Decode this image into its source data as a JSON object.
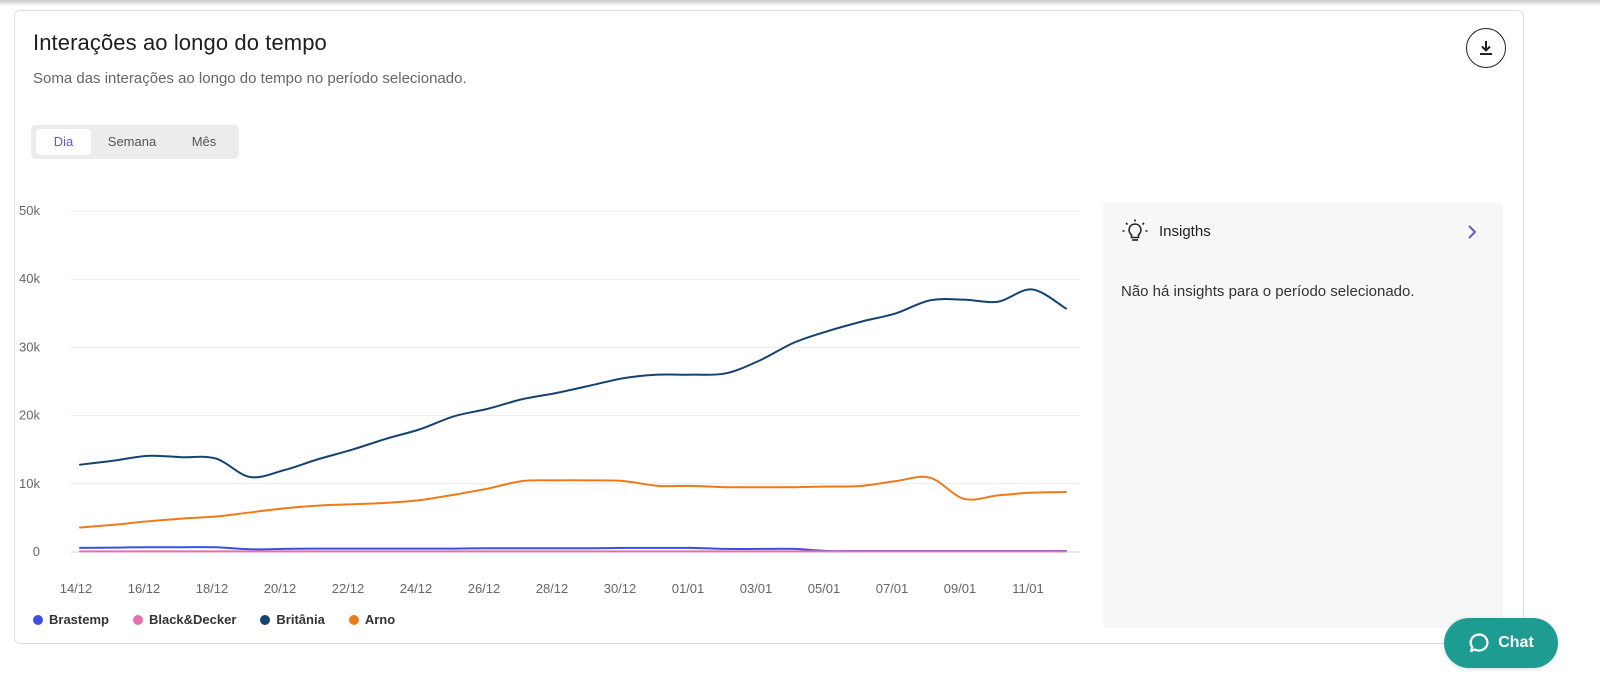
{
  "header": {
    "title": "Interações ao longo do tempo",
    "subtitle": "Soma das interações ao longo do tempo no período selecionado."
  },
  "toolbar": {
    "download_icon": "download-icon"
  },
  "period_tabs": [
    {
      "label": "Dia",
      "active": true
    },
    {
      "label": "Semana",
      "active": false
    },
    {
      "label": "Mês",
      "active": false
    }
  ],
  "insights": {
    "icon": "lightbulb-icon",
    "title": "Insigths",
    "empty_text": "Não há insights para o período selecionado."
  },
  "chat": {
    "label": "Chat",
    "icon": "chat-bubble-icon"
  },
  "colors": {
    "Brastemp": "#3d4fe0",
    "Black&Decker": "#e76fb0",
    "Britânia": "#16426f",
    "Arno": "#f07a1a",
    "accent": "#5a5fc8",
    "chat": "#1e9c92"
  },
  "chart_data": {
    "type": "line",
    "x": [
      "14/12",
      "15/12",
      "16/12",
      "17/12",
      "18/12",
      "19/12",
      "20/12",
      "21/12",
      "22/12",
      "23/12",
      "24/12",
      "25/12",
      "26/12",
      "27/12",
      "28/12",
      "29/12",
      "30/12",
      "31/12",
      "01/01",
      "02/01",
      "03/01",
      "04/01",
      "05/01",
      "06/01",
      "07/01",
      "08/01",
      "09/01",
      "10/01",
      "11/01",
      "12/01"
    ],
    "x_tick_labels": [
      "14/12",
      "16/12",
      "18/12",
      "20/12",
      "22/12",
      "24/12",
      "26/12",
      "28/12",
      "30/12",
      "01/01",
      "03/01",
      "05/01",
      "07/01",
      "09/01",
      "11/01"
    ],
    "y_ticks": [
      0,
      10000,
      20000,
      30000,
      40000,
      50000
    ],
    "y_tick_labels": [
      "0",
      "10k",
      "20k",
      "30k",
      "40k",
      "50k"
    ],
    "ylim": [
      0,
      50000
    ],
    "grid": true,
    "legend_position": "bottom-left",
    "series": [
      {
        "name": "Brastemp",
        "values": [
          600,
          650,
          700,
          700,
          700,
          400,
          450,
          500,
          500,
          500,
          500,
          500,
          550,
          550,
          550,
          550,
          600,
          600,
          600,
          450,
          450,
          450,
          150,
          150,
          150,
          150,
          150,
          150,
          150,
          150
        ]
      },
      {
        "name": "Black&Decker",
        "values": [
          100,
          100,
          100,
          100,
          100,
          100,
          100,
          100,
          100,
          100,
          100,
          100,
          100,
          100,
          100,
          100,
          100,
          100,
          100,
          100,
          100,
          100,
          100,
          100,
          100,
          100,
          100,
          100,
          100,
          100
        ]
      },
      {
        "name": "Britânia",
        "values": [
          12800,
          13400,
          14100,
          13900,
          13700,
          11000,
          12000,
          13600,
          15000,
          16600,
          18000,
          19900,
          21000,
          22400,
          23300,
          24400,
          25500,
          26000,
          26000,
          26200,
          28100,
          30700,
          32400,
          33800,
          35000,
          36900,
          37000,
          36700,
          38500,
          35700
        ]
      },
      {
        "name": "Arno",
        "values": [
          3600,
          4000,
          4500,
          4900,
          5200,
          5800,
          6400,
          6800,
          7000,
          7200,
          7600,
          8400,
          9300,
          10400,
          10500,
          10500,
          10400,
          9700,
          9700,
          9500,
          9500,
          9500,
          9600,
          9700,
          10400,
          10900,
          7800,
          8300,
          8700,
          8800
        ]
      }
    ]
  }
}
